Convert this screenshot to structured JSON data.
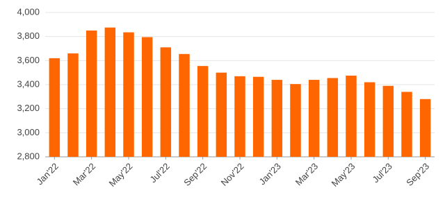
{
  "chart_data": {
    "type": "bar",
    "categories": [
      "Jan'22",
      null,
      "Mar'22",
      null,
      "May'22",
      null,
      "Jul'22",
      null,
      "Sep'22",
      null,
      "Nov'22",
      null,
      "Jan'23",
      null,
      "Mar'23",
      null,
      "May'23",
      null,
      "Jul'23",
      null,
      "Sep'23"
    ],
    "values": [
      3620,
      3660,
      3850,
      3875,
      3835,
      3795,
      3710,
      3655,
      3555,
      3500,
      3470,
      3465,
      3440,
      3405,
      3440,
      3455,
      3475,
      3420,
      3390,
      3340,
      3280
    ],
    "color": "#ff6600",
    "ylim": [
      2800,
      4000
    ],
    "yticks": [
      {
        "value": 2800,
        "label": "2,800"
      },
      {
        "value": 3000,
        "label": "3,000"
      },
      {
        "value": 3200,
        "label": "3,200"
      },
      {
        "value": 3400,
        "label": "3,400"
      },
      {
        "value": 3600,
        "label": "3,600"
      },
      {
        "value": 3800,
        "label": "3,800"
      },
      {
        "value": 4000,
        "label": "4,000"
      }
    ],
    "grid": true
  }
}
